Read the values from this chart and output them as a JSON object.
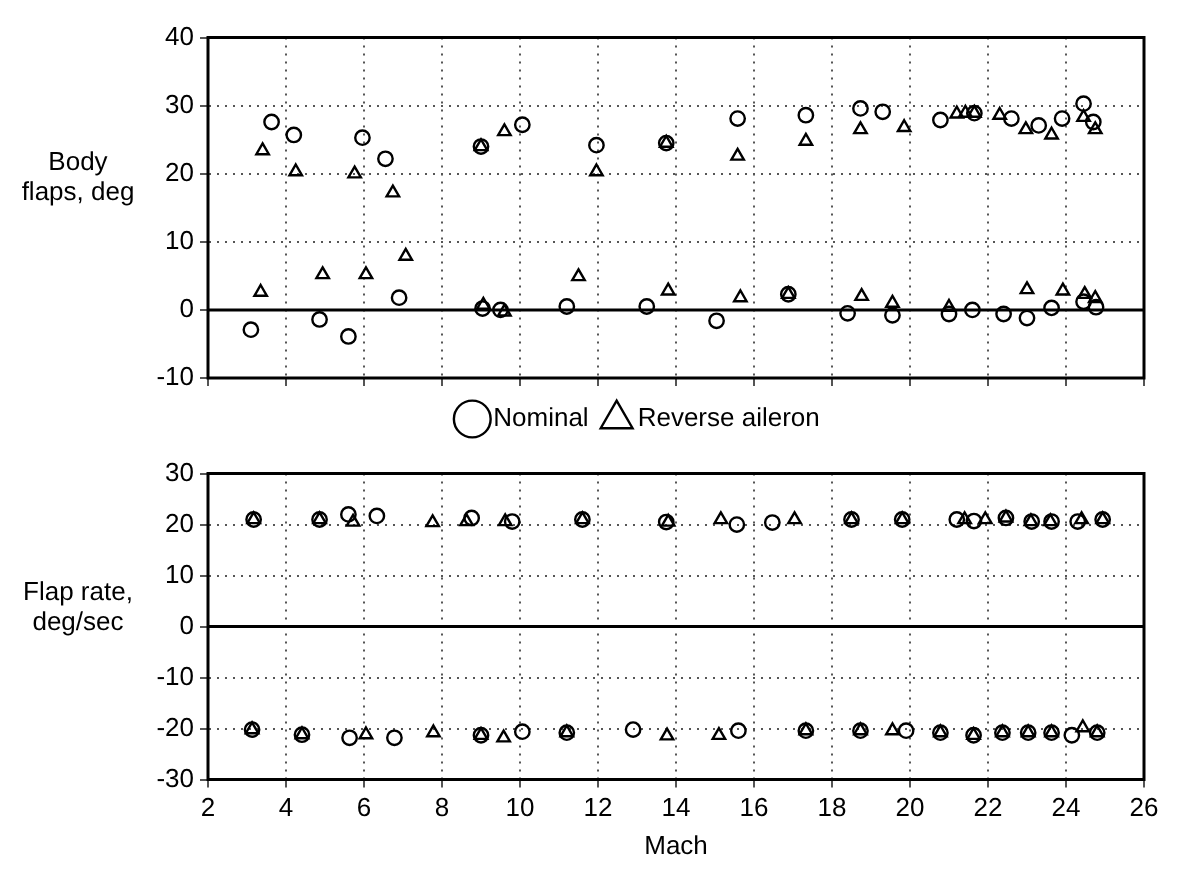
{
  "chart_data": [
    {
      "type": "scatter",
      "ylabel": "Body flaps, deg",
      "xlim": [
        2,
        26
      ],
      "xticks": [
        2,
        4,
        6,
        8,
        10,
        12,
        14,
        16,
        18,
        20,
        22,
        24,
        26
      ],
      "ylim": [
        -10,
        40
      ],
      "yticks": [
        -10,
        0,
        10,
        20,
        30,
        40
      ],
      "tick_labels": "y",
      "grid": true,
      "legend": "bottom",
      "ref_lines": [
        {
          "axis": "y",
          "value": 0,
          "color": "#000000"
        }
      ],
      "series": [
        {
          "name": "Nominal",
          "color": "#000000",
          "marker": "circle",
          "x": [
            3.1,
            3.63,
            4.2,
            4.86,
            5.6,
            5.96,
            6.55,
            6.9,
            9.0,
            9.04,
            9.5,
            10.06,
            11.2,
            11.96,
            13.25,
            13.75,
            15.04,
            15.58,
            16.88,
            17.33,
            18.4,
            18.73,
            19.3,
            19.55,
            20.78,
            21.0,
            21.6,
            21.65,
            22.4,
            22.6,
            23.0,
            23.3,
            23.63,
            23.9,
            24.45,
            24.45,
            24.7,
            24.77
          ],
          "values": [
            -2.9,
            27.6,
            25.7,
            -1.4,
            -3.9,
            25.3,
            22.2,
            1.8,
            24,
            0.2,
            0,
            27.2,
            0.5,
            24.2,
            0.5,
            24.5,
            -1.6,
            28.1,
            2.3,
            28.6,
            -0.5,
            29.6,
            29.1,
            -0.8,
            27.9,
            -0.6,
            0,
            28.9,
            -0.6,
            28.1,
            -1.2,
            27.1,
            0.3,
            28.1,
            30.3,
            1.2,
            27.6,
            0.4
          ]
        },
        {
          "name": "Reverse aileron",
          "color": "#000000",
          "marker": "triangle",
          "x": [
            3.35,
            3.4,
            4.25,
            4.94,
            5.76,
            6.05,
            6.74,
            7.07,
            9.0,
            9.06,
            9.6,
            9.6,
            11.5,
            11.96,
            13.75,
            13.8,
            15.58,
            15.65,
            16.88,
            17.33,
            18.73,
            18.76,
            19.55,
            19.85,
            21.0,
            21.2,
            21.42,
            21.65,
            22.3,
            22.97,
            23.0,
            23.63,
            23.92,
            24.45,
            24.48,
            24.75,
            24.75
          ],
          "values": [
            2.6,
            23.4,
            20.3,
            5.2,
            20,
            5.2,
            17.2,
            7.9,
            24,
            0.7,
            26.2,
            -0.3,
            4.9,
            20.3,
            24.5,
            2.8,
            22.6,
            1.8,
            2.3,
            24.8,
            26.5,
            2,
            1.0,
            26.8,
            0.4,
            28.8,
            28.9,
            28.9,
            28.6,
            26.5,
            3.0,
            25.7,
            2.8,
            28.3,
            2.3,
            26.5,
            1.7
          ]
        }
      ]
    },
    {
      "type": "scatter",
      "xlabel": "Mach",
      "ylabel": "Flap rate, deg/sec",
      "xlim": [
        2,
        26
      ],
      "xticks": [
        2,
        4,
        6,
        8,
        10,
        12,
        14,
        16,
        18,
        20,
        22,
        24,
        26
      ],
      "ylim": [
        -30,
        30
      ],
      "yticks": [
        -30,
        -20,
        -10,
        0,
        10,
        20,
        30
      ],
      "grid": true,
      "ref_lines": [
        {
          "axis": "y",
          "value": 0,
          "color": "#000000"
        }
      ],
      "series": [
        {
          "color": "#000000",
          "marker": "circle",
          "x": [
            3.17,
            4.86,
            5.6,
            6.33,
            8.76,
            9.8,
            11.6,
            13.75,
            15.56,
            16.47,
            18.5,
            19.8,
            21.2,
            21.64,
            22.46,
            23.12,
            23.63,
            24.3,
            24.94,
            3.13,
            4.41,
            5.63,
            6.78,
            9.0,
            10.06,
            11.2,
            12.9,
            15.6,
            17.33,
            18.73,
            19.9,
            20.78,
            21.63,
            22.37,
            23.03,
            23.63,
            24.15,
            24.8
          ],
          "values": [
            21,
            21,
            22,
            21.7,
            21.3,
            20.6,
            21,
            20.5,
            20,
            20.4,
            21,
            21,
            21,
            20.7,
            21.3,
            20.6,
            20.6,
            20.6,
            21,
            -20.2,
            -21.2,
            -21.8,
            -21.8,
            -21.3,
            -20.6,
            -20.8,
            -20.2,
            -20.4,
            -20.4,
            -20.4,
            -20.4,
            -20.8,
            -21.3,
            -20.8,
            -20.8,
            -20.8,
            -21.3,
            -20.8
          ]
        },
        {
          "color": "#000000",
          "marker": "triangle",
          "x": [
            3.17,
            4.86,
            5.72,
            7.76,
            8.63,
            9.62,
            11.6,
            13.8,
            15.15,
            17.04,
            18.5,
            19.8,
            21.4,
            21.93,
            22.46,
            23.1,
            23.6,
            24.4,
            24.94,
            3.13,
            4.41,
            6.05,
            7.78,
            9.0,
            9.58,
            11.2,
            13.77,
            15.1,
            17.33,
            18.73,
            19.55,
            20.78,
            21.63,
            22.37,
            23.03,
            23.63,
            24.43,
            24.8
          ],
          "values": [
            21,
            21,
            20.5,
            20.4,
            20.6,
            20.6,
            21,
            20.5,
            21,
            21,
            21,
            21,
            21,
            21,
            21.3,
            20.6,
            20.6,
            21,
            21,
            -20.2,
            -21.2,
            -21.2,
            -20.8,
            -21.3,
            -21.8,
            -20.8,
            -21.4,
            -21.3,
            -20.4,
            -20.4,
            -20.4,
            -20.8,
            -21.3,
            -20.8,
            -20.8,
            -20.8,
            -19.8,
            -20.8
          ]
        }
      ]
    }
  ]
}
